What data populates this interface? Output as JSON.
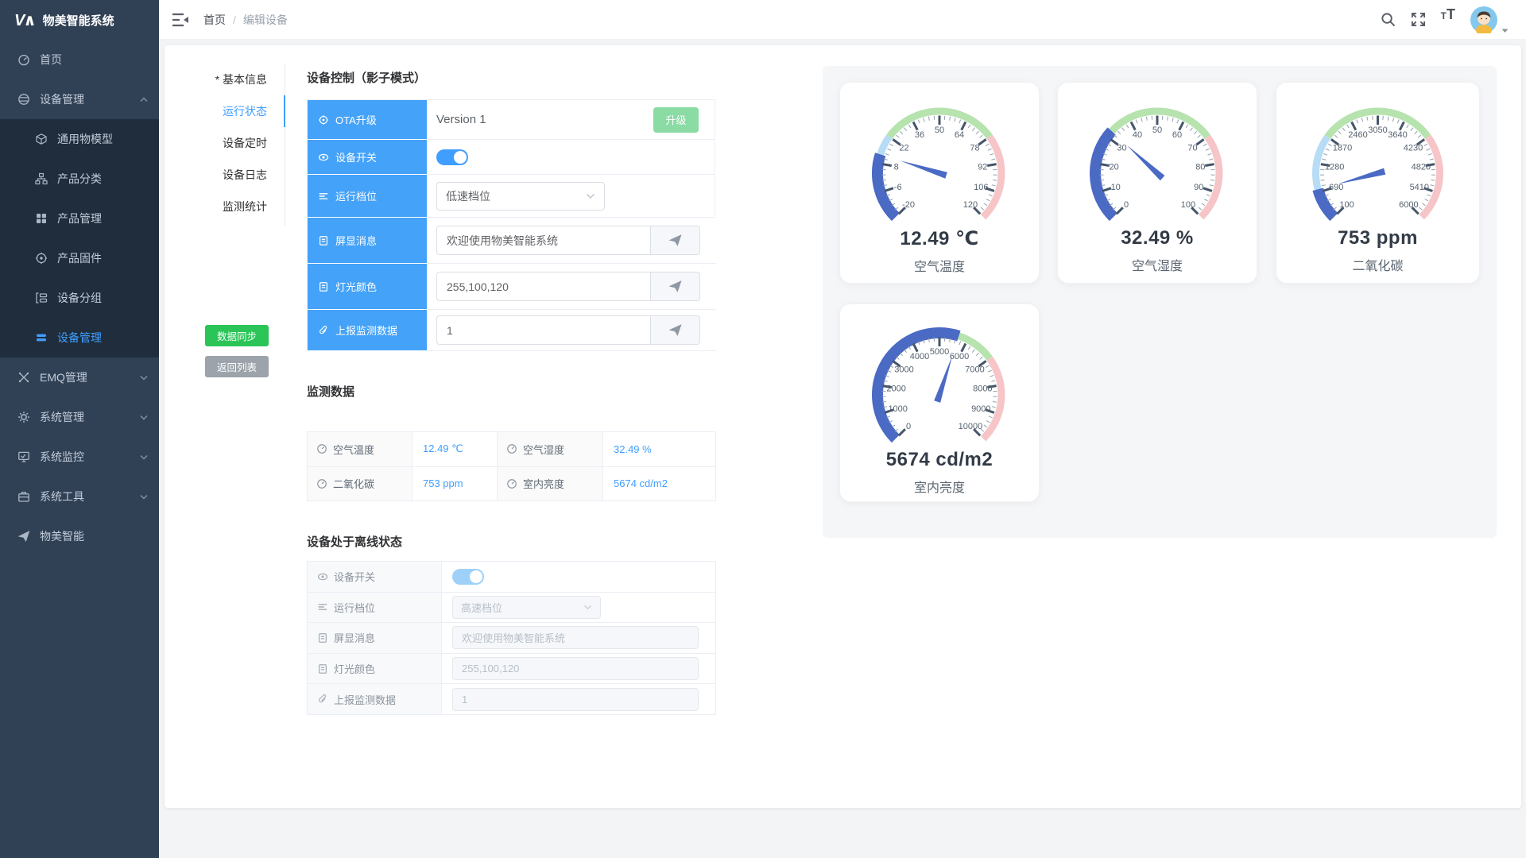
{
  "app": {
    "title": "物美智能系统",
    "logo_mark": "V∧"
  },
  "header": {
    "breadcrumb": {
      "home": "首页",
      "separator": "/",
      "current": "编辑设备"
    },
    "topbar_tools": [
      "search",
      "fullscreen",
      "font-size",
      "avatar",
      "caret-down"
    ]
  },
  "sidebar": {
    "items": [
      {
        "label": "首页",
        "icon": "dashboard-icon"
      },
      {
        "label": "设备管理",
        "icon": "devices-icon",
        "expanded": true,
        "children": [
          {
            "label": "通用物模型",
            "icon": "cube-icon"
          },
          {
            "label": "产品分类",
            "icon": "sitemap-icon"
          },
          {
            "label": "产品管理",
            "icon": "grid-icon"
          },
          {
            "label": "产品固件",
            "icon": "firmware-icon"
          },
          {
            "label": "设备分组",
            "icon": "group-icon"
          },
          {
            "label": "设备管理",
            "icon": "bars-icon",
            "active": true
          }
        ]
      },
      {
        "label": "EMQ管理",
        "icon": "emq-icon",
        "collapsed": true
      },
      {
        "label": "系统管理",
        "icon": "gear-icon",
        "collapsed": true
      },
      {
        "label": "系统监控",
        "icon": "monitor-icon",
        "collapsed": true
      },
      {
        "label": "系统工具",
        "icon": "toolbox-icon",
        "collapsed": true
      },
      {
        "label": "物美智能",
        "icon": "paper-plane-icon"
      }
    ]
  },
  "tabs": {
    "items": [
      {
        "label": "* 基本信息"
      },
      {
        "label": "运行状态",
        "active": true
      },
      {
        "label": "设备定时"
      },
      {
        "label": "设备日志"
      },
      {
        "label": "监测统计"
      }
    ]
  },
  "actions": {
    "sync": {
      "label": "数据同步",
      "color": "#2bc456"
    },
    "back": {
      "label": "返回列表",
      "color": "#9ca3ab"
    }
  },
  "control_panel": {
    "title": "设备控制（影子模式）",
    "rows": [
      {
        "icon": "firmware-icon",
        "label": "OTA升级",
        "type": "ota",
        "value": "Version 1",
        "button": "升级"
      },
      {
        "icon": "switch-icon",
        "label": "设备开关",
        "type": "toggle",
        "state": "on"
      },
      {
        "icon": "lines-icon",
        "label": "运行档位",
        "type": "select",
        "value": "低速档位"
      },
      {
        "icon": "doc-icon",
        "label": "屏显消息",
        "type": "input-send",
        "value": "欢迎使用物美智能系统"
      },
      {
        "icon": "doc-icon",
        "label": "灯光颜色",
        "type": "input-send",
        "value": "255,100,120"
      },
      {
        "icon": "paperclip-icon",
        "label": "上报监测数据",
        "type": "input-send",
        "value": "1"
      }
    ]
  },
  "monitor": {
    "title": "监测数据",
    "items": [
      {
        "label": "空气温度",
        "value": "12.49 ℃"
      },
      {
        "label": "空气湿度",
        "value": "32.49 %"
      },
      {
        "label": "二氧化碳",
        "value": "753 ppm"
      },
      {
        "label": "室内亮度",
        "value": "5674 cd/m2"
      }
    ]
  },
  "offline_panel": {
    "title": "设备处于离线状态",
    "rows": [
      {
        "icon": "switch-icon",
        "label": "设备开关",
        "type": "toggle",
        "state": "on",
        "disabled": true
      },
      {
        "icon": "lines-icon",
        "label": "运行档位",
        "type": "select",
        "value": "高速档位",
        "disabled": true
      },
      {
        "icon": "doc-icon",
        "label": "屏显消息",
        "type": "input",
        "value": "欢迎使用物美智能系统",
        "disabled": true
      },
      {
        "icon": "doc-icon",
        "label": "灯光颜色",
        "type": "input",
        "value": "255,100,120",
        "disabled": true
      },
      {
        "icon": "paperclip-icon",
        "label": "上报监测数据",
        "type": "input",
        "value": "1",
        "disabled": true
      }
    ]
  },
  "chart_data": {
    "type": "gauge",
    "style": {
      "segments": [
        {
          "to": 0.3,
          "color": "#b7dcf5"
        },
        {
          "to": 0.7,
          "color": "#b6e3ae"
        },
        {
          "to": 1.0,
          "color": "#f6c5c7"
        }
      ],
      "progress": "#4a6ac4",
      "tick_major": "#46566b",
      "tick_minor": "#93a0ae",
      "tick_label": "#55626f"
    },
    "gauges": [
      {
        "title": "空气温度",
        "value": 12.49,
        "unit": "℃",
        "value_text": "12.49 ℃",
        "min": -20,
        "max": 120,
        "ticks": [
          "-20",
          "-6",
          "8",
          "22",
          "36",
          "50",
          "64",
          "78",
          "92",
          "106",
          "120"
        ]
      },
      {
        "title": "空气湿度",
        "value": 32.49,
        "unit": "%",
        "value_text": "32.49 %",
        "min": 0,
        "max": 100,
        "ticks": [
          "0",
          "10",
          "20",
          "30",
          "40",
          "50",
          "60",
          "70",
          "80",
          "90",
          "100"
        ]
      },
      {
        "title": "二氧化碳",
        "value": 753,
        "unit": "ppm",
        "value_text": "753 ppm",
        "min": 100,
        "max": 6000,
        "ticks": [
          "100",
          "690",
          "1280",
          "1870",
          "2460",
          "3050",
          "3640",
          "4230",
          "4820",
          "5410",
          "6000"
        ]
      },
      {
        "title": "室内亮度",
        "value": 5674,
        "unit": "cd/m2",
        "value_text": "5674 cd/m2",
        "min": 0,
        "max": 10000,
        "ticks": [
          "0",
          "1000",
          "2000",
          "3000",
          "4000",
          "5000",
          "6000",
          "7000",
          "8000",
          "9000",
          "10000"
        ]
      }
    ]
  }
}
